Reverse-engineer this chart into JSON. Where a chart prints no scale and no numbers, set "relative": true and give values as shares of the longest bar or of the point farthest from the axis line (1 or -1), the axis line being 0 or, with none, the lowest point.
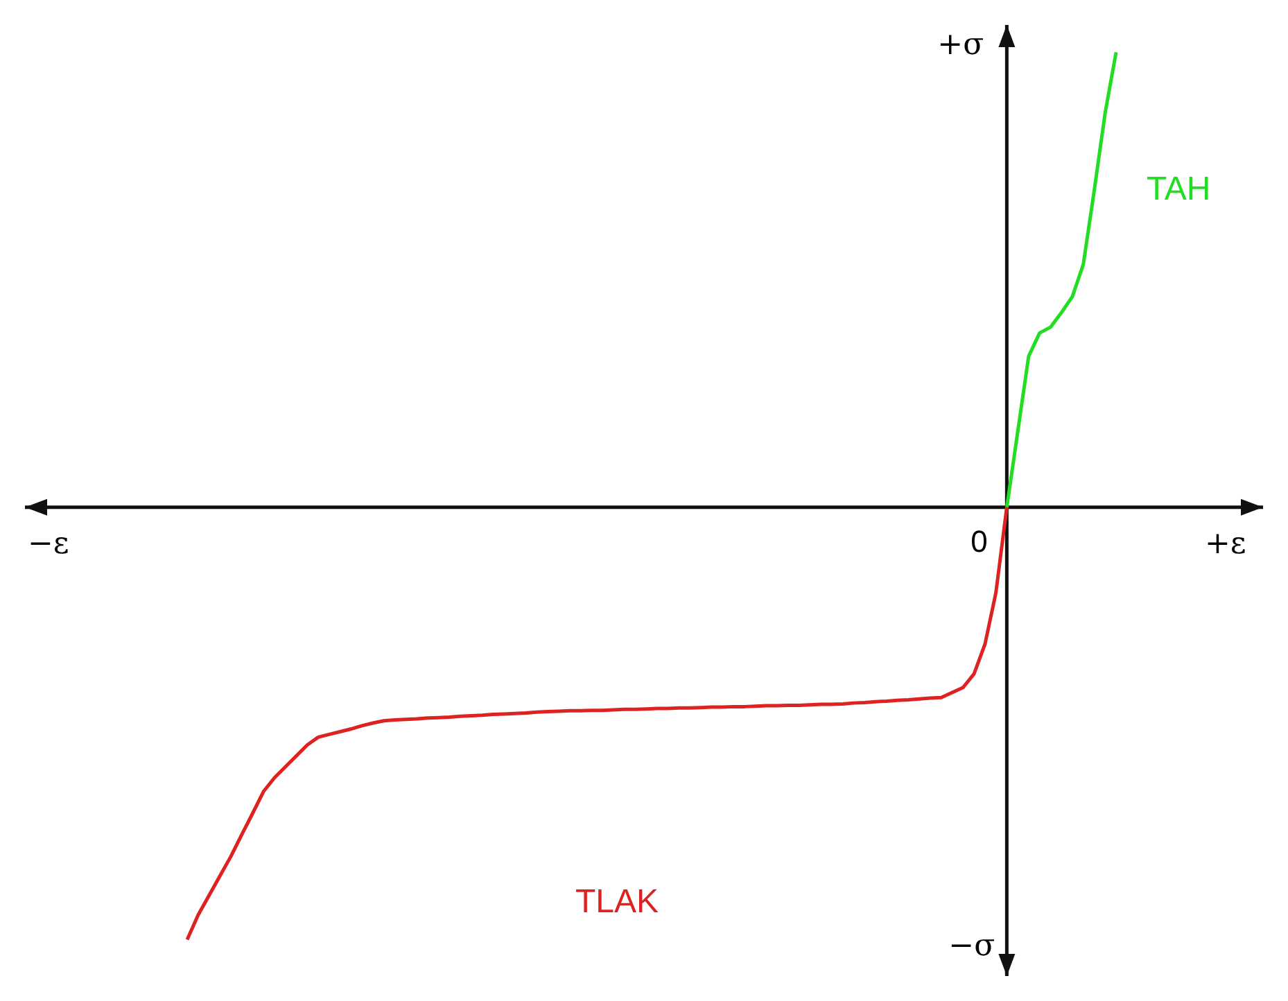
{
  "chart_data": {
    "type": "line",
    "relative": true,
    "xlabel": "+ε",
    "ylabel": "+σ",
    "annotations": [
      "−ε",
      "−σ",
      "0"
    ],
    "legend": false,
    "marker": "none",
    "line_style": "solid",
    "categories": [
      null,
      null,
      null,
      null,
      null,
      null,
      null,
      null,
      null,
      null,
      null,
      null,
      null,
      null,
      null,
      null,
      null,
      null,
      null,
      null,
      null,
      null,
      null,
      null,
      null,
      null,
      null,
      null,
      null,
      null,
      null,
      null,
      null,
      null,
      null,
      null,
      null,
      null,
      null,
      null,
      null,
      null,
      null,
      null,
      null,
      null,
      null,
      null,
      null,
      null,
      null,
      null,
      null,
      null,
      null,
      null,
      null,
      null,
      null,
      null,
      null,
      null,
      null,
      null,
      null,
      null,
      null,
      null,
      null,
      null,
      null,
      null,
      null,
      null,
      null,
      null,
      null,
      null,
      null,
      null,
      null,
      null,
      null,
      null,
      null,
      null
    ],
    "series": [
      {
        "name": "TAH",
        "color": "#22dd22",
        "values": [
          null,
          null,
          null,
          null,
          null,
          null,
          null,
          null,
          null,
          null,
          null,
          null,
          null,
          null,
          null,
          null,
          null,
          null,
          null,
          null,
          null,
          null,
          null,
          null,
          null,
          null,
          null,
          null,
          null,
          null,
          null,
          null,
          null,
          null,
          null,
          null,
          null,
          null,
          null,
          null,
          null,
          null,
          null,
          null,
          null,
          null,
          null,
          null,
          null,
          null,
          null,
          null,
          null,
          null,
          null,
          null,
          null,
          null,
          null,
          null,
          null,
          null,
          null,
          null,
          null,
          null,
          null,
          null,
          null,
          null,
          null,
          null,
          null,
          null,
          null,
          0,
          0.166,
          0.332,
          0.383,
          0.396,
          0.428,
          0.463,
          0.534,
          0.696,
          0.867,
          1
        ]
      },
      {
        "name": "TLAK",
        "color": "#dd2222",
        "values": [
          -0.95,
          -0.896,
          -0.853,
          -0.81,
          -0.767,
          -0.719,
          -0.672,
          -0.624,
          -0.594,
          -0.57,
          -0.546,
          -0.522,
          -0.505,
          -0.499,
          -0.493,
          -0.487,
          -0.48,
          -0.474,
          -0.469,
          -0.467,
          -0.466,
          -0.465,
          -0.463,
          -0.462,
          -0.461,
          -0.459,
          -0.458,
          -0.457,
          -0.455,
          -0.454,
          -0.453,
          -0.452,
          -0.45,
          -0.449,
          -0.448,
          -0.447,
          -0.447,
          -0.446,
          -0.446,
          -0.445,
          -0.444,
          -0.444,
          -0.443,
          -0.442,
          -0.442,
          -0.441,
          -0.441,
          -0.44,
          -0.439,
          -0.439,
          -0.438,
          -0.438,
          -0.437,
          -0.436,
          -0.436,
          -0.435,
          -0.435,
          -0.434,
          -0.433,
          -0.433,
          -0.432,
          -0.43,
          -0.429,
          -0.427,
          -0.426,
          -0.424,
          -0.423,
          -0.421,
          -0.419,
          -0.418,
          -0.407,
          -0.396,
          -0.366,
          -0.301,
          -0.188,
          0,
          null,
          null,
          null,
          null,
          null,
          null,
          null,
          null,
          null,
          null
        ]
      }
    ]
  }
}
